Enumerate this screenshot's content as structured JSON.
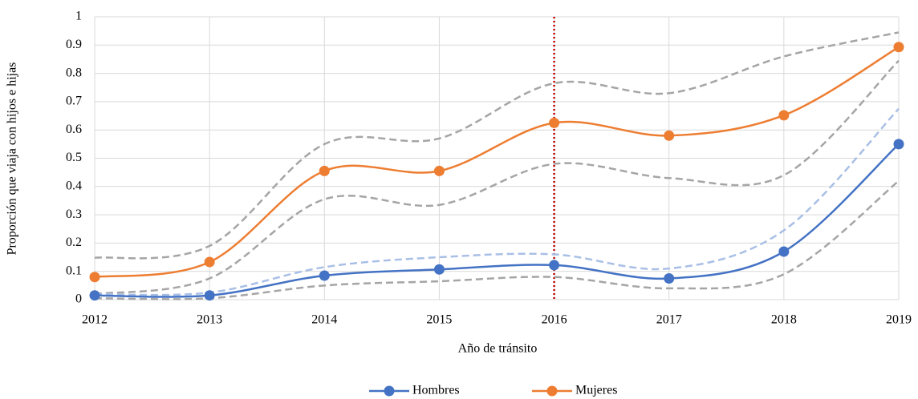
{
  "chart_data": {
    "type": "line",
    "x_label": "Año de tránsito",
    "y_label": "Proporción que viaja con hijos e hijas",
    "x": [
      2012,
      2013,
      2014,
      2015,
      2016,
      2017,
      2018,
      2019
    ],
    "xlim": [
      2012,
      2019
    ],
    "xticks": [
      2012,
      2013,
      2014,
      2015,
      2016,
      2017,
      2018,
      2019
    ],
    "ylim": [
      0,
      1
    ],
    "yticks": [
      0,
      0.1,
      0.2,
      0.3,
      0.4,
      0.5,
      0.6,
      0.7,
      0.8,
      0.9,
      1
    ],
    "grid": true,
    "smooth": true,
    "legend": "bottom",
    "vline": {
      "x": 2016,
      "color": "#c00000",
      "style": "dotted"
    },
    "series": [
      {
        "color": "#a5a5a5",
        "style": "dashed",
        "values": [
          0.148,
          0.19,
          0.55,
          0.57,
          0.765,
          0.73,
          0.86,
          0.945
        ]
      },
      {
        "color": "#a5a5a5",
        "style": "dashed",
        "values": [
          0.02,
          0.075,
          0.355,
          0.335,
          0.48,
          0.43,
          0.44,
          0.845
        ]
      },
      {
        "color": "#a9bfe6",
        "style": "dashed",
        "values": [
          0.02,
          0.025,
          0.115,
          0.15,
          0.16,
          0.11,
          0.245,
          0.675
        ]
      },
      {
        "color": "#a5a5a5",
        "style": "dashed",
        "values": [
          0.005,
          0.005,
          0.05,
          0.065,
          0.08,
          0.04,
          0.09,
          0.42
        ]
      },
      {
        "name": "Hombres",
        "color": "#4472c4",
        "style": "solid",
        "markers": true,
        "values": [
          0.015,
          0.015,
          0.085,
          0.107,
          0.122,
          0.075,
          0.17,
          0.55
        ]
      },
      {
        "name": "Mujeres",
        "color": "#ed7d31",
        "style": "solid",
        "markers": true,
        "values": [
          0.08,
          0.133,
          0.455,
          0.455,
          0.625,
          0.58,
          0.652,
          0.893
        ]
      }
    ]
  }
}
